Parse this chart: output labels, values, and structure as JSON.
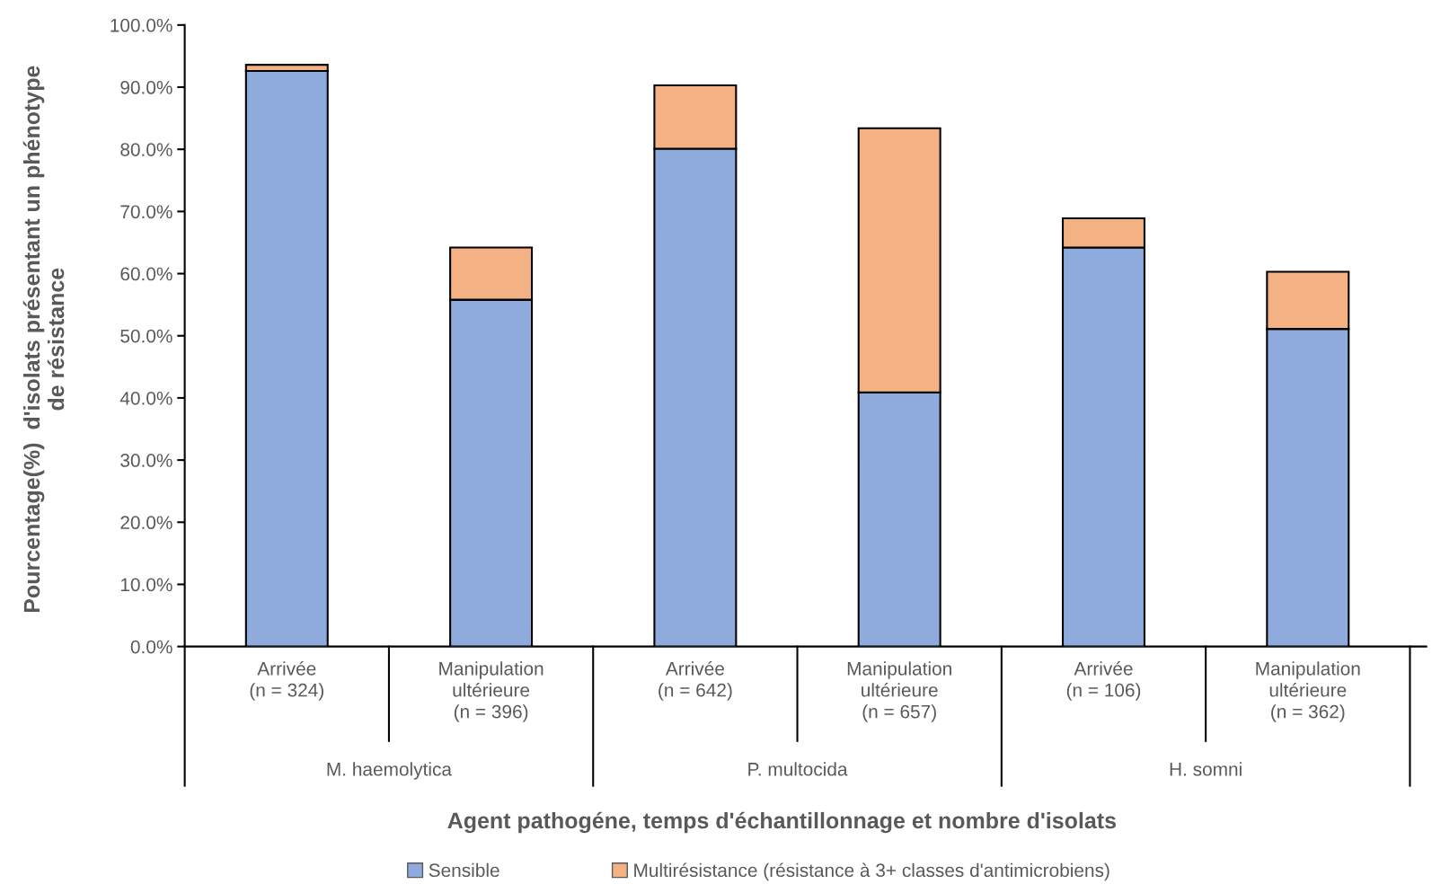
{
  "chart_data": {
    "type": "bar",
    "stacked": true,
    "xlabel": "Agent pathogéne, temps d'échantillonnage et nombre d'isolats",
    "ylabel": "Pourcentage(%)  d'isolats présentant un phénotype\nde résistance",
    "categories": [
      "Arrivée\n(n = 324)",
      "Manipulation\nultérieure\n(n = 396)",
      "Arrivée\n(n = 642)",
      "Manipulation\nultérieure\n(n = 657)",
      "Arrivée\n(n = 106)",
      "Manipulation\nultérieure\n(n = 362)"
    ],
    "series": [
      {
        "name": "Sensible",
        "color": "#8faadc",
        "values": [
          92.6,
          55.8,
          80.1,
          40.9,
          64.2,
          51.1
        ]
      },
      {
        "name": "Multirésistance (résistance à 3+ classes d'antimicrobiens)",
        "color": "#f4b183",
        "values": [
          1.0,
          8.4,
          10.2,
          42.5,
          4.7,
          9.2
        ]
      }
    ],
    "annotations": [
      "M. haemolytica",
      "P. multocida",
      "H. somni"
    ],
    "ylim": [
      0,
      100
    ],
    "yticks": [
      {
        "value": 0,
        "label": "0.0%"
      },
      {
        "value": 10,
        "label": "10.0%"
      },
      {
        "value": 20,
        "label": "20.0%"
      },
      {
        "value": 30,
        "label": "30.0%"
      },
      {
        "value": 40,
        "label": "40.0%"
      },
      {
        "value": 50,
        "label": "50.0%"
      },
      {
        "value": 60,
        "label": "60.0%"
      },
      {
        "value": 70,
        "label": "70.0%"
      },
      {
        "value": 80,
        "label": "80.0%"
      },
      {
        "value": 90,
        "label": "90.0%"
      },
      {
        "value": 100,
        "label": "100.0%"
      }
    ],
    "grid": false,
    "legend": "bottom"
  }
}
